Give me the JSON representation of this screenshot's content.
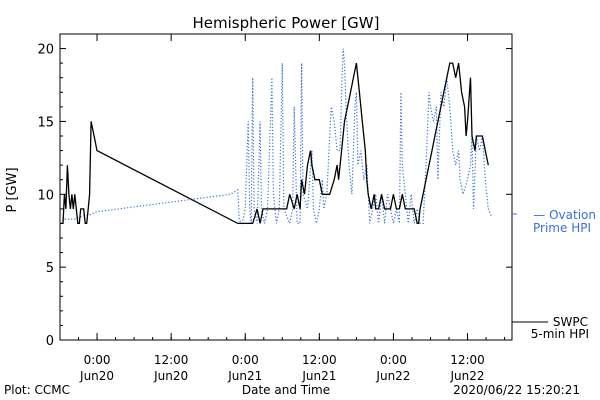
{
  "chart_data": {
    "type": "line",
    "title": "Hemispheric Power [GW]",
    "xlabel": "Date and Time",
    "ylabel": "P [GW]",
    "ylim": [
      0,
      21
    ],
    "xlim": [
      -0.25,
      2.8
    ],
    "x_unit": "days from 2020-06-20 00:00",
    "y_ticks": [
      0,
      5,
      10,
      15,
      20
    ],
    "x_ticks": [
      {
        "x": 0.0,
        "time": "0:00",
        "date": "Jun20"
      },
      {
        "x": 0.5,
        "time": "12:00",
        "date": "Jun20"
      },
      {
        "x": 1.0,
        "time": "0:00",
        "date": "Jun21"
      },
      {
        "x": 1.5,
        "time": "12:00",
        "date": "Jun21"
      },
      {
        "x": 2.0,
        "time": "0:00",
        "date": "Jun22"
      },
      {
        "x": 2.5,
        "time": "12:00",
        "date": "Jun22"
      }
    ],
    "grid": false,
    "series": [
      {
        "name": "SWPC 5-min HPI",
        "color": "#000000",
        "style": "solid",
        "points": [
          [
            -0.25,
            8
          ],
          [
            -0.23,
            8
          ],
          [
            -0.22,
            10
          ],
          [
            -0.21,
            9
          ],
          [
            -0.2,
            12
          ],
          [
            -0.19,
            10
          ],
          [
            -0.18,
            9
          ],
          [
            -0.17,
            10
          ],
          [
            -0.16,
            9
          ],
          [
            -0.15,
            10
          ],
          [
            -0.14,
            9
          ],
          [
            -0.13,
            8
          ],
          [
            -0.12,
            8
          ],
          [
            -0.11,
            9
          ],
          [
            -0.1,
            9
          ],
          [
            -0.09,
            9
          ],
          [
            -0.08,
            8
          ],
          [
            -0.07,
            8
          ],
          [
            -0.06,
            9
          ],
          [
            -0.05,
            10
          ],
          [
            -0.04,
            15
          ],
          [
            -0.02,
            14
          ],
          [
            0.0,
            13
          ],
          [
            0.95,
            8
          ],
          [
            1.0,
            8
          ],
          [
            1.05,
            8
          ],
          [
            1.08,
            9
          ],
          [
            1.1,
            8
          ],
          [
            1.12,
            9
          ],
          [
            1.15,
            9
          ],
          [
            1.2,
            9
          ],
          [
            1.25,
            9
          ],
          [
            1.28,
            9
          ],
          [
            1.3,
            10
          ],
          [
            1.33,
            9
          ],
          [
            1.35,
            10
          ],
          [
            1.37,
            9
          ],
          [
            1.38,
            11
          ],
          [
            1.4,
            10
          ],
          [
            1.42,
            12
          ],
          [
            1.44,
            13
          ],
          [
            1.45,
            12
          ],
          [
            1.47,
            11
          ],
          [
            1.49,
            11
          ],
          [
            1.5,
            11
          ],
          [
            1.52,
            10
          ],
          [
            1.55,
            10
          ],
          [
            1.57,
            10
          ],
          [
            1.6,
            11
          ],
          [
            1.62,
            12
          ],
          [
            1.63,
            11
          ],
          [
            1.65,
            13
          ],
          [
            1.67,
            15
          ],
          [
            1.69,
            16
          ],
          [
            1.71,
            17
          ],
          [
            1.73,
            18
          ],
          [
            1.75,
            19
          ],
          [
            1.77,
            17
          ],
          [
            1.79,
            15
          ],
          [
            1.81,
            13
          ],
          [
            1.82,
            11
          ],
          [
            1.83,
            10
          ],
          [
            1.85,
            9
          ],
          [
            1.87,
            10
          ],
          [
            1.88,
            9
          ],
          [
            1.9,
            9
          ],
          [
            1.92,
            10
          ],
          [
            1.94,
            9
          ],
          [
            1.96,
            9
          ],
          [
            1.98,
            9
          ],
          [
            2.0,
            10
          ],
          [
            2.02,
            9
          ],
          [
            2.04,
            9
          ],
          [
            2.06,
            10
          ],
          [
            2.08,
            9
          ],
          [
            2.1,
            9
          ],
          [
            2.12,
            9
          ],
          [
            2.14,
            9
          ],
          [
            2.16,
            8
          ],
          [
            2.17,
            8
          ],
          [
            2.18,
            9
          ],
          [
            2.2,
            10
          ],
          [
            2.22,
            11
          ],
          [
            2.24,
            12
          ],
          [
            2.26,
            13
          ],
          [
            2.28,
            14
          ],
          [
            2.3,
            15
          ],
          [
            2.32,
            16
          ],
          [
            2.34,
            17
          ],
          [
            2.36,
            18
          ],
          [
            2.38,
            19
          ],
          [
            2.4,
            19
          ],
          [
            2.42,
            18
          ],
          [
            2.44,
            19
          ],
          [
            2.46,
            17
          ],
          [
            2.48,
            16
          ],
          [
            2.49,
            14
          ],
          [
            2.5,
            15
          ],
          [
            2.52,
            18
          ],
          [
            2.53,
            14
          ],
          [
            2.55,
            13
          ],
          [
            2.56,
            14
          ],
          [
            2.58,
            14
          ],
          [
            2.6,
            14
          ],
          [
            2.62,
            13
          ],
          [
            2.64,
            12
          ]
        ]
      },
      {
        "name": "Ovation Prime HPI",
        "color": "#3b6fd8",
        "style": "dotted",
        "points": [
          [
            -0.25,
            8
          ],
          [
            -0.22,
            8.3
          ],
          [
            -0.15,
            8.3
          ],
          [
            -0.1,
            8.5
          ],
          [
            -0.05,
            8.6
          ],
          [
            0.0,
            8.8
          ],
          [
            0.3,
            9.2
          ],
          [
            0.6,
            9.6
          ],
          [
            0.9,
            10.0
          ],
          [
            0.95,
            10.3
          ],
          [
            0.96,
            8.2
          ],
          [
            0.98,
            8.0
          ],
          [
            1.0,
            9
          ],
          [
            1.02,
            15
          ],
          [
            1.03,
            9
          ],
          [
            1.04,
            8
          ],
          [
            1.05,
            18
          ],
          [
            1.06,
            9
          ],
          [
            1.08,
            8
          ],
          [
            1.1,
            15
          ],
          [
            1.11,
            9
          ],
          [
            1.13,
            8
          ],
          [
            1.15,
            9
          ],
          [
            1.18,
            18
          ],
          [
            1.19,
            10
          ],
          [
            1.21,
            8
          ],
          [
            1.23,
            9
          ],
          [
            1.25,
            19
          ],
          [
            1.26,
            9
          ],
          [
            1.3,
            8
          ],
          [
            1.32,
            9
          ],
          [
            1.33,
            16
          ],
          [
            1.35,
            8
          ],
          [
            1.37,
            8
          ],
          [
            1.38,
            19
          ],
          [
            1.39,
            10
          ],
          [
            1.42,
            9
          ],
          [
            1.45,
            13
          ],
          [
            1.46,
            9
          ],
          [
            1.48,
            8
          ],
          [
            1.5,
            9
          ],
          [
            1.52,
            11
          ],
          [
            1.53,
            9
          ],
          [
            1.55,
            10
          ],
          [
            1.58,
            16
          ],
          [
            1.6,
            15
          ],
          [
            1.62,
            13
          ],
          [
            1.64,
            13
          ],
          [
            1.65,
            17
          ],
          [
            1.66,
            20
          ],
          [
            1.67,
            19
          ],
          [
            1.68,
            16
          ],
          [
            1.7,
            12
          ],
          [
            1.72,
            10
          ],
          [
            1.74,
            16
          ],
          [
            1.75,
            17
          ],
          [
            1.76,
            12
          ],
          [
            1.78,
            13
          ],
          [
            1.8,
            11
          ],
          [
            1.82,
            12
          ],
          [
            1.84,
            8
          ],
          [
            1.86,
            9
          ],
          [
            1.88,
            10
          ],
          [
            1.9,
            8
          ],
          [
            1.92,
            10
          ],
          [
            1.94,
            8
          ],
          [
            1.96,
            10
          ],
          [
            1.98,
            9
          ],
          [
            2.0,
            8
          ],
          [
            2.02,
            9
          ],
          [
            2.04,
            8
          ],
          [
            2.05,
            17
          ],
          [
            2.06,
            12
          ],
          [
            2.08,
            10
          ],
          [
            2.1,
            8
          ],
          [
            2.12,
            10
          ],
          [
            2.14,
            8
          ],
          [
            2.16,
            9
          ],
          [
            2.18,
            8
          ],
          [
            2.2,
            8
          ],
          [
            2.22,
            12
          ],
          [
            2.24,
            17
          ],
          [
            2.25,
            16
          ],
          [
            2.27,
            15
          ],
          [
            2.29,
            16
          ],
          [
            2.3,
            11
          ],
          [
            2.32,
            17
          ],
          [
            2.34,
            16
          ],
          [
            2.36,
            18
          ],
          [
            2.38,
            16
          ],
          [
            2.4,
            13
          ],
          [
            2.42,
            12
          ],
          [
            2.44,
            13
          ],
          [
            2.45,
            11
          ],
          [
            2.47,
            10
          ],
          [
            2.5,
            11
          ],
          [
            2.52,
            12
          ],
          [
            2.53,
            14
          ],
          [
            2.54,
            9
          ],
          [
            2.56,
            14
          ],
          [
            2.58,
            13
          ],
          [
            2.6,
            14
          ],
          [
            2.62,
            11
          ],
          [
            2.64,
            9
          ],
          [
            2.66,
            8.5
          ]
        ]
      }
    ],
    "legend": {
      "ovation": [
        "— Ovation",
        "Prime HPI"
      ],
      "swpc": [
        "SWPC",
        "5-min HPI"
      ]
    }
  },
  "footer": {
    "left": "Plot: CCMC",
    "right": "2020/06/22 15:20:21"
  }
}
